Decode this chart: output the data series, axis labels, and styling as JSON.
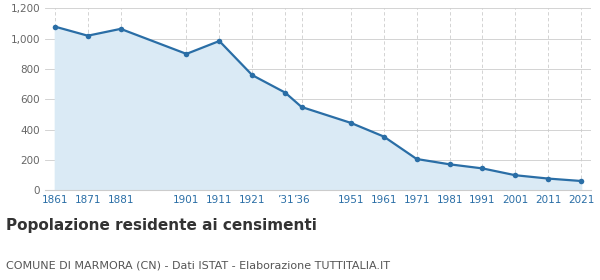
{
  "years": [
    1861,
    1871,
    1881,
    1901,
    1911,
    1921,
    1931,
    1936,
    1951,
    1961,
    1971,
    1981,
    1991,
    2001,
    2011,
    2021
  ],
  "labels": [
    "1861",
    "1871",
    "1881",
    "1901",
    "1911",
    "1921",
    "’31",
    "’36",
    "1951",
    "1961",
    "1971",
    "1981",
    "1991",
    "2001",
    "2011",
    "2021"
  ],
  "values": [
    1080,
    1020,
    1065,
    900,
    985,
    760,
    645,
    550,
    445,
    355,
    207,
    172,
    145,
    100,
    78,
    62
  ],
  "line_color": "#2a6ea6",
  "fill_color": "#daeaf5",
  "marker_color": "#2a6ea6",
  "background_color": "#ffffff",
  "grid_color": "#cccccc",
  "ylim": [
    0,
    1200
  ],
  "yticks": [
    0,
    200,
    400,
    600,
    800,
    1000,
    1200
  ],
  "title": "Popolazione residente ai censimenti",
  "subtitle": "COMUNE DI MARMORA (CN) - Dati ISTAT - Elaborazione TUTTITALIA.IT",
  "title_fontsize": 11,
  "subtitle_fontsize": 8,
  "tick_fontsize": 7.5,
  "tick_color": "#2a6ea6",
  "ytick_color": "#666666"
}
